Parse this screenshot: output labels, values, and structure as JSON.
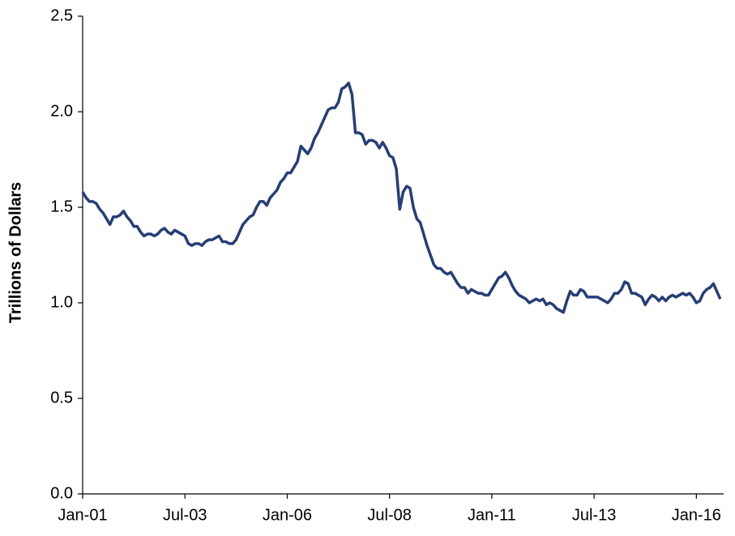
{
  "chart_data": {
    "type": "line",
    "y_label": "Trillions of Dollars",
    "color": "#253e78",
    "categories": [
      "Jan-01",
      null,
      null,
      null,
      null,
      null,
      null,
      null,
      null,
      null,
      null,
      null,
      null,
      null,
      null,
      null,
      null,
      null,
      null,
      null,
      null,
      null,
      null,
      null,
      null,
      null,
      null,
      null,
      null,
      null,
      "Jul-03",
      null,
      null,
      null,
      null,
      null,
      null,
      null,
      null,
      null,
      null,
      null,
      null,
      null,
      null,
      null,
      null,
      null,
      null,
      null,
      null,
      null,
      null,
      null,
      null,
      null,
      null,
      null,
      null,
      null,
      "Jan-06",
      null,
      null,
      null,
      null,
      null,
      null,
      null,
      null,
      null,
      null,
      null,
      null,
      null,
      null,
      null,
      null,
      null,
      null,
      null,
      null,
      null,
      null,
      null,
      null,
      null,
      null,
      null,
      null,
      null,
      "Jul-08",
      null,
      null,
      null,
      null,
      null,
      null,
      null,
      null,
      null,
      null,
      null,
      null,
      null,
      null,
      null,
      null,
      null,
      null,
      null,
      null,
      null,
      null,
      null,
      null,
      null,
      null,
      null,
      null,
      null,
      "Jan-11",
      null,
      null,
      null,
      null,
      null,
      null,
      null,
      null,
      null,
      null,
      null,
      null,
      null,
      null,
      null,
      null,
      null,
      null,
      null,
      null,
      null,
      null,
      null,
      null,
      null,
      null,
      null,
      null,
      null,
      "Jul-13",
      null,
      null,
      null,
      null,
      null,
      null,
      null,
      null,
      null,
      null,
      null,
      null,
      null,
      null,
      null,
      null,
      null,
      null,
      null,
      null,
      null,
      null,
      null,
      null,
      null,
      null,
      null,
      null,
      null,
      "Jan-16",
      null,
      null,
      null,
      null,
      null,
      null,
      null
    ],
    "values": [
      1.58,
      1.55,
      1.53,
      1.53,
      1.52,
      1.49,
      1.47,
      1.44,
      1.41,
      1.45,
      1.45,
      1.46,
      1.48,
      1.45,
      1.43,
      1.4,
      1.4,
      1.37,
      1.35,
      1.36,
      1.36,
      1.35,
      1.36,
      1.38,
      1.39,
      1.37,
      1.36,
      1.38,
      1.37,
      1.36,
      1.35,
      1.31,
      1.3,
      1.31,
      1.31,
      1.3,
      1.32,
      1.33,
      1.33,
      1.34,
      1.35,
      1.32,
      1.32,
      1.31,
      1.31,
      1.33,
      1.37,
      1.41,
      1.43,
      1.45,
      1.46,
      1.5,
      1.53,
      1.53,
      1.51,
      1.55,
      1.57,
      1.59,
      1.63,
      1.65,
      1.68,
      1.68,
      1.71,
      1.74,
      1.82,
      1.8,
      1.78,
      1.81,
      1.86,
      1.89,
      1.93,
      1.97,
      2.01,
      2.02,
      2.02,
      2.05,
      2.12,
      2.13,
      2.15,
      2.09,
      1.89,
      1.89,
      1.88,
      1.83,
      1.85,
      1.85,
      1.84,
      1.81,
      1.84,
      1.81,
      1.77,
      1.76,
      1.7,
      1.49,
      1.58,
      1.61,
      1.6,
      1.5,
      1.44,
      1.42,
      1.36,
      1.3,
      1.25,
      1.2,
      1.18,
      1.18,
      1.16,
      1.15,
      1.16,
      1.13,
      1.1,
      1.08,
      1.08,
      1.05,
      1.07,
      1.06,
      1.05,
      1.05,
      1.04,
      1.04,
      1.07,
      1.1,
      1.13,
      1.14,
      1.16,
      1.13,
      1.09,
      1.06,
      1.04,
      1.03,
      1.02,
      1.0,
      1.01,
      1.02,
      1.01,
      1.02,
      0.99,
      1.0,
      0.99,
      0.97,
      0.96,
      0.95,
      1.01,
      1.06,
      1.04,
      1.04,
      1.07,
      1.06,
      1.03,
      1.03,
      1.03,
      1.03,
      1.02,
      1.01,
      1.0,
      1.02,
      1.05,
      1.05,
      1.07,
      1.11,
      1.1,
      1.05,
      1.05,
      1.04,
      1.03,
      0.99,
      1.02,
      1.04,
      1.03,
      1.01,
      1.03,
      1.01,
      1.03,
      1.04,
      1.03,
      1.04,
      1.05,
      1.04,
      1.05,
      1.03,
      1.0,
      1.01,
      1.05,
      1.07,
      1.08,
      1.1,
      1.06,
      1.02
    ],
    "ylim": [
      0,
      2.5
    ],
    "yticks": [
      {
        "value": 0,
        "label": "0.0"
      },
      0.5,
      {
        "value": 1,
        "label": "1.0"
      },
      1.5,
      {
        "value": 2,
        "label": "2.0"
      },
      2.5
    ],
    "grid": false
  }
}
